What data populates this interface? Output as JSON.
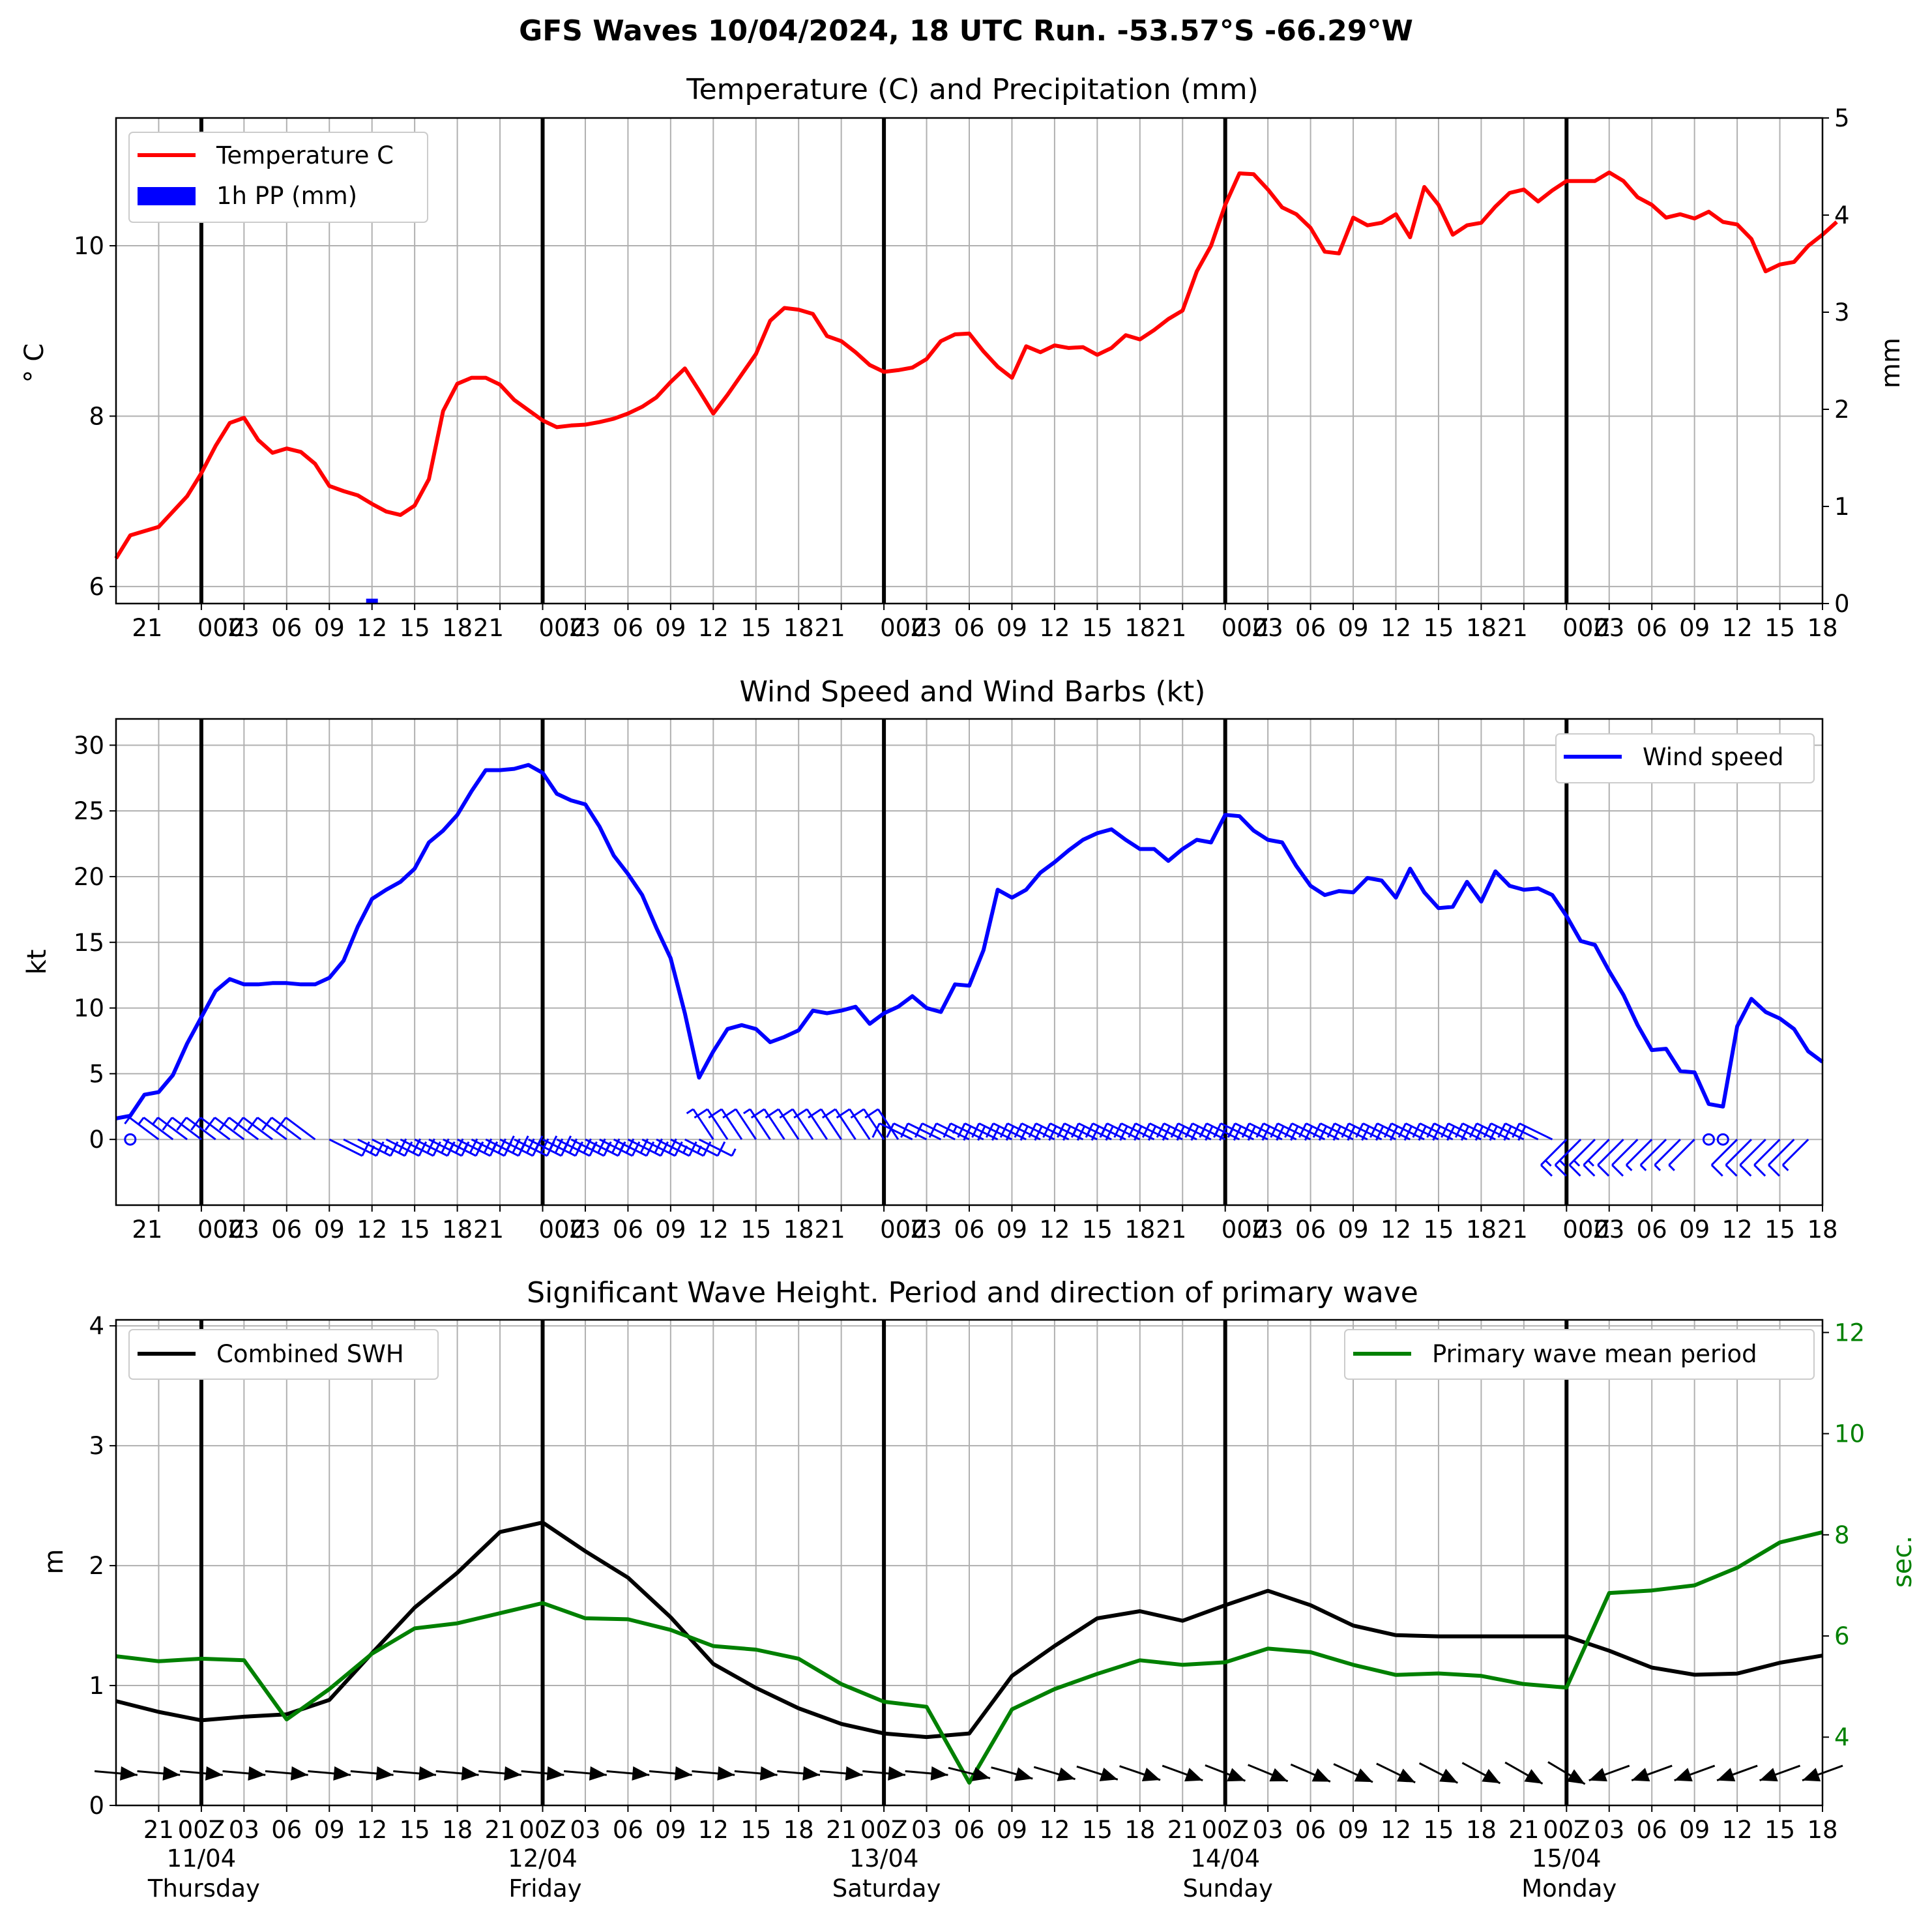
{
  "suptitle": "GFS Waves 10/04/2024, 18 UTC Run. -53.57°S -66.29°W",
  "colors": {
    "temperature": "#ff0000",
    "precip": "#0000ff",
    "wind": "#0000ff",
    "swh": "#000000",
    "period": "#008000",
    "grid": "#b0b0b0"
  },
  "x_axis": {
    "start_hour": 18,
    "top_ticks": [
      "21",
      "00Z",
      "03",
      "06",
      "09",
      "12",
      "15",
      "18",
      "21",
      "00Z",
      "03",
      "06",
      "09",
      "12",
      "15",
      "18",
      "21",
      "00Z",
      "03",
      "06",
      "09",
      "12",
      "15",
      "18",
      "21",
      "00Z",
      "03",
      "06",
      "09",
      "12",
      "15",
      "18",
      "21",
      "00Z",
      "03",
      "06",
      "09",
      "12",
      "15",
      "18"
    ],
    "bottom_ticks": [
      "21",
      "00Z",
      "03",
      "06",
      "09",
      "12",
      "15",
      "18",
      "21",
      "00Z",
      "03",
      "06",
      "09",
      "12",
      "15",
      "18",
      "21",
      "00Z",
      "03",
      "06",
      "09",
      "12",
      "15",
      "18",
      "21",
      "00Z",
      "03",
      "06",
      "09",
      "12",
      "15",
      "18",
      "21",
      "00Z",
      "03",
      "06",
      "09",
      "12",
      "15",
      "18"
    ],
    "day_labels": [
      {
        "date": "11/04",
        "weekday": "Thursday"
      },
      {
        "date": "12/04",
        "weekday": "Friday"
      },
      {
        "date": "13/04",
        "weekday": "Saturday"
      },
      {
        "date": "14/04",
        "weekday": "Sunday"
      },
      {
        "date": "15/04",
        "weekday": "Monday"
      }
    ]
  },
  "chart_data": [
    {
      "type": "line",
      "title": "Temperature (C) and Precipitation (mm)",
      "ylabel": "$^\\circ$C",
      "ylabel_display": "° C",
      "y2label": "mm",
      "ylim": [
        5.8,
        11.5
      ],
      "y2lim": [
        0,
        5
      ],
      "yticks": [
        6,
        8,
        10
      ],
      "y2ticks": [
        0,
        1,
        2,
        3,
        4,
        5
      ],
      "legend": "upper left",
      "series": [
        {
          "name": "Temperature C",
          "start_hour": 0,
          "step_hours": 1,
          "values": [
            6.33,
            6.6,
            6.65,
            6.7,
            6.88,
            7.06,
            7.33,
            7.65,
            7.92,
            7.98,
            7.72,
            7.57,
            7.62,
            7.58,
            7.44,
            7.18,
            7.12,
            7.07,
            6.97,
            6.88,
            6.84,
            6.95,
            7.26,
            8.06,
            8.38,
            8.45,
            8.45,
            8.37,
            8.19,
            8.07,
            7.95,
            7.87,
            7.89,
            7.9,
            7.93,
            7.97,
            8.03,
            8.11,
            8.22,
            8.4,
            8.56,
            8.3,
            8.03,
            8.25,
            8.49,
            8.73,
            9.12,
            9.27,
            9.25,
            9.2,
            8.94,
            8.88,
            8.75,
            8.6,
            8.52,
            8.54,
            8.57,
            8.67,
            8.88,
            8.96,
            8.97,
            8.76,
            8.58,
            8.45,
            8.82,
            8.75,
            8.83,
            8.8,
            8.81,
            8.72,
            8.8,
            8.95,
            8.9,
            9.01,
            9.14,
            9.24,
            9.7,
            10.0,
            10.48,
            10.85,
            10.84,
            10.66,
            10.45,
            10.37,
            10.21,
            9.93,
            9.91,
            10.33,
            10.24,
            10.27,
            10.37,
            10.1,
            10.69,
            10.48,
            10.13,
            10.24,
            10.27,
            10.46,
            10.62,
            10.66,
            10.52,
            10.65,
            10.76,
            10.76,
            10.76,
            10.86,
            10.76,
            10.57,
            10.48,
            10.33,
            10.37,
            10.32,
            10.4,
            10.28,
            10.25,
            10.08,
            9.7,
            9.78,
            9.81,
            10.0,
            10.13,
            10.28
          ]
        },
        {
          "name": "1h PP (mm)",
          "type": "bar",
          "axis": "right",
          "x_hours": [
            18
          ],
          "values": [
            0.05
          ]
        }
      ]
    },
    {
      "type": "line",
      "title": "Wind Speed and Wind Barbs (kt)",
      "ylabel": "kt",
      "ylim": [
        -5,
        32
      ],
      "yticks": [
        0,
        5,
        10,
        15,
        20,
        25,
        30
      ],
      "legend": "upper right",
      "series": [
        {
          "name": "Wind speed",
          "start_hour": 0,
          "step_hours": 1,
          "values": [
            1.6,
            1.8,
            3.4,
            3.6,
            4.9,
            7.3,
            9.3,
            11.3,
            12.2,
            11.8,
            11.8,
            11.9,
            11.9,
            11.8,
            11.8,
            12.3,
            13.6,
            16.2,
            18.3,
            19.0,
            19.6,
            20.6,
            22.6,
            23.5,
            24.7,
            26.5,
            28.1,
            28.1,
            28.2,
            28.5,
            27.9,
            26.3,
            25.8,
            25.5,
            23.8,
            21.6,
            20.2,
            18.6,
            16.1,
            13.8,
            9.6,
            4.7,
            6.7,
            8.4,
            8.7,
            8.4,
            7.4,
            7.8,
            8.3,
            9.8,
            9.6,
            9.8,
            10.1,
            8.8,
            9.6,
            10.1,
            10.9,
            10.0,
            9.7,
            11.8,
            11.7,
            14.4,
            19.0,
            18.4,
            19.0,
            20.3,
            21.1,
            22.0,
            22.8,
            23.3,
            23.6,
            22.8,
            22.1,
            22.1,
            21.2,
            22.1,
            22.8,
            22.6,
            24.7,
            24.6,
            23.5,
            22.8,
            22.6,
            20.8,
            19.3,
            18.6,
            18.9,
            18.8,
            19.9,
            19.7,
            18.4,
            20.6,
            18.8,
            17.6,
            17.7,
            19.6,
            18.1,
            20.4,
            19.3,
            19.0,
            19.1,
            18.6,
            17.0,
            15.1,
            14.8,
            12.8,
            11.0,
            8.7,
            6.8,
            6.9,
            5.2,
            5.1,
            2.7,
            2.5,
            8.6,
            10.7,
            9.7,
            9.2,
            8.4,
            6.7,
            5.9
          ]
        }
      ]
    },
    {
      "type": "line",
      "title": "Significant Wave Height. Period and direction of primary wave",
      "ylabel": "m",
      "y2label": "sec.",
      "ylim": [
        0,
        4.05
      ],
      "y2lim": [
        2.65,
        12.25
      ],
      "yticks": [
        0,
        1,
        2,
        3,
        4
      ],
      "y2ticks": [
        4,
        6,
        8,
        10,
        12
      ],
      "series": [
        {
          "name": "Combined SWH",
          "legend": "upper left",
          "start_hour": 0,
          "step_hours": 3,
          "values": [
            0.87,
            0.78,
            0.71,
            0.74,
            0.76,
            0.88,
            1.27,
            1.65,
            1.94,
            2.28,
            2.36,
            2.12,
            1.9,
            1.57,
            1.18,
            0.98,
            0.81,
            0.68,
            0.6,
            0.57,
            0.6,
            1.08,
            1.33,
            1.56,
            1.62,
            1.54,
            1.67,
            1.79,
            1.67,
            1.5,
            1.42,
            1.41,
            1.41,
            1.41,
            1.41,
            1.29,
            1.15,
            1.09,
            1.1,
            1.19,
            1.25
          ]
        },
        {
          "name": "Primary wave mean period",
          "legend": "upper right",
          "axis": "right",
          "start_hour": 0,
          "step_hours": 3,
          "values": [
            5.6,
            5.5,
            5.55,
            5.52,
            4.35,
            4.95,
            5.65,
            6.15,
            6.25,
            6.45,
            6.65,
            6.35,
            6.33,
            6.12,
            5.8,
            5.73,
            5.55,
            5.05,
            4.7,
            4.6,
            3.1,
            4.55,
            4.95,
            5.25,
            5.52,
            5.43,
            5.48,
            5.75,
            5.68,
            5.43,
            5.23,
            5.26,
            5.21,
            5.05,
            4.98,
            6.85,
            6.9,
            7.0,
            7.35,
            7.85,
            8.05
          ]
        }
      ]
    }
  ]
}
